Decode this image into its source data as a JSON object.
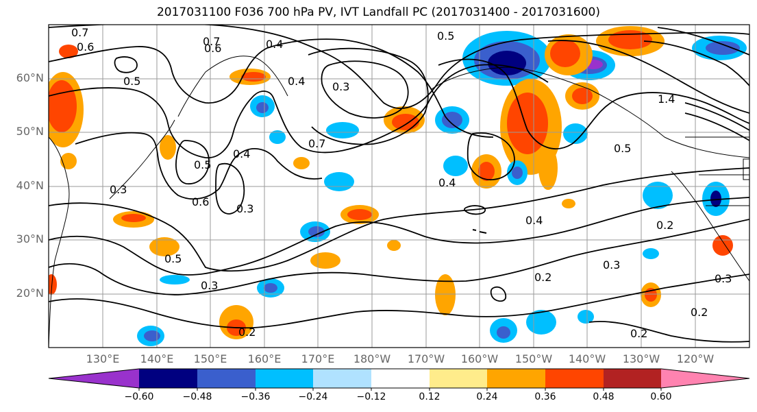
{
  "title": "2017031100 F036 700 hPa PV, IVT Landfall PC (2017031400 - 2017031600)",
  "latitude_labels": [
    "60°N",
    "50°N",
    "40°N",
    "30°N",
    "20°N"
  ],
  "longitude_labels": [
    "130°E",
    "140°E",
    "150°E",
    "160°E",
    "170°E",
    "180°W",
    "170°W",
    "160°W",
    "150°W",
    "140°W",
    "130°W",
    "120°W"
  ],
  "contour_labels": [
    "0.7",
    "0.6",
    "0.5",
    "0.4",
    "0.3",
    "0.3",
    "0.7",
    "0.6",
    "0.5",
    "0.4",
    "0.6",
    "0.5",
    "0.3",
    "0.4",
    "0.5",
    "0.3",
    "0.2",
    "0.4",
    "0.2",
    "0.3",
    "0.2",
    "0.2",
    "0.2",
    "0.3",
    "1.4",
    "0.5",
    "0.4",
    "0.7"
  ],
  "colorbar": {
    "tick_labels": [
      "−0.60",
      "−0.48",
      "−0.36",
      "−0.24",
      "−0.12",
      "0.12",
      "0.24",
      "0.36",
      "0.48",
      "0.60"
    ],
    "colors": [
      "#9932cc",
      "#000080",
      "#3a5fcd",
      "#00bfff",
      "#b0e2ff",
      "#ffffff",
      "#ffec8b",
      "#ffa500",
      "#ff4500",
      "#b22222",
      "#ff83b0"
    ]
  }
}
